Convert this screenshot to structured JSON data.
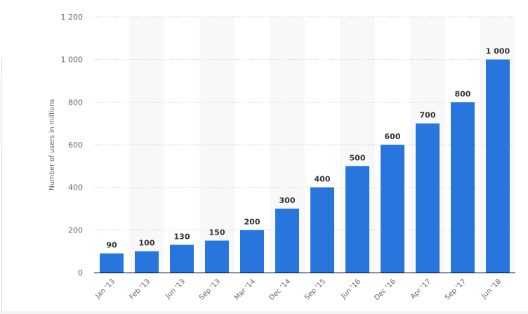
{
  "chart_data": {
    "type": "bar",
    "categories": [
      "Jan '13",
      "Feb '13",
      "Jun '13",
      "Sep '13",
      "Mar '14",
      "Dec '14",
      "Sep '15",
      "Jun '16",
      "Dec '16",
      "Apr '17",
      "Sep '17",
      "Jun '18"
    ],
    "values": [
      90,
      100,
      130,
      150,
      200,
      300,
      400,
      500,
      600,
      700,
      800,
      1000
    ],
    "data_labels": [
      "90",
      "100",
      "130",
      "150",
      "200",
      "300",
      "400",
      "500",
      "600",
      "700",
      "800",
      "1 000"
    ],
    "title": "",
    "xlabel": "",
    "ylabel": "Number of users in millions",
    "ylim": [
      0,
      1200
    ],
    "yticks": [
      0,
      200,
      400,
      600,
      800,
      1000,
      1200
    ],
    "ytick_labels": [
      "0",
      "200",
      "400",
      "600",
      "800",
      "1 000",
      "1 200"
    ],
    "grid": "horizontal dotted",
    "legend": "none",
    "colors": {
      "bar": "#2876dd",
      "band": "#f8f8f8",
      "grid": "#c8c8c8",
      "axis": "#000000"
    }
  }
}
